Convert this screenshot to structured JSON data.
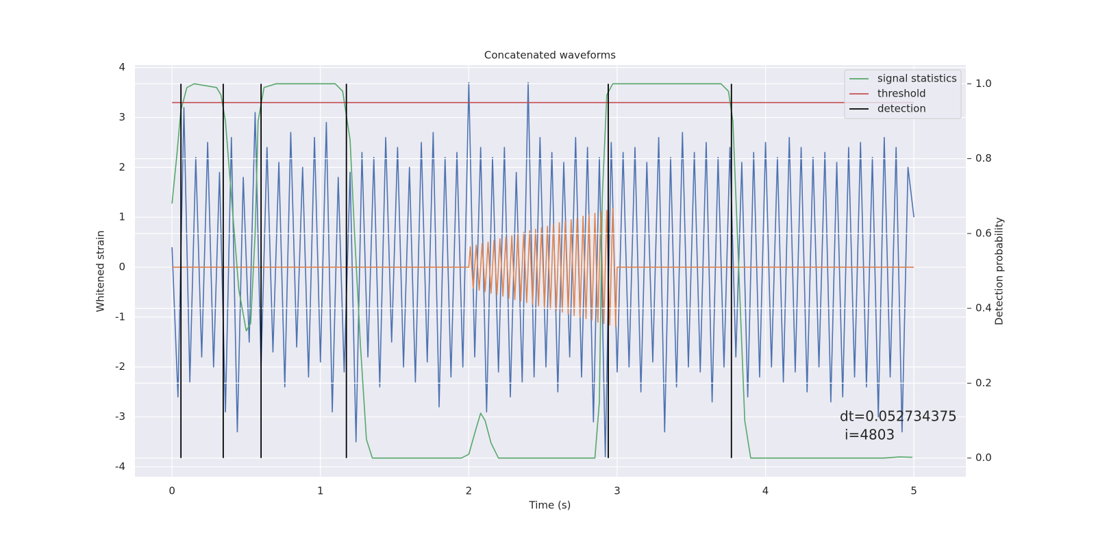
{
  "chart_data": {
    "type": "line",
    "title": "Concatenated waveforms",
    "xlabel": "Time (s)",
    "ylabel": "Whitened strain",
    "y2label": "Detection probability",
    "xlim": [
      -0.25,
      5.35
    ],
    "ylim": [
      -4.2,
      4.05
    ],
    "y2lim": [
      -0.05,
      1.05
    ],
    "xticks": [
      0,
      1,
      2,
      3,
      4,
      5
    ],
    "yticks": [
      -4,
      -3,
      -2,
      -1,
      0,
      1,
      2,
      3,
      4
    ],
    "y2ticks": [
      {
        "value": 0,
        "label": "0.0"
      },
      0.2,
      0.4,
      0.6,
      0.8,
      {
        "value": 1,
        "label": "1.0"
      }
    ],
    "grid": true,
    "legend": "upper right",
    "series": [
      {
        "color": "#4c72b0",
        "axis": "y",
        "x": [
          0,
          0.04,
          0.08,
          0.12,
          0.16,
          0.2,
          0.24,
          0.28,
          0.32,
          0.36,
          0.4,
          0.44,
          0.48,
          0.52,
          0.56,
          0.6,
          0.64,
          0.68,
          0.72,
          0.76,
          0.8,
          0.84,
          0.88,
          0.92,
          0.96,
          1,
          1.04,
          1.08,
          1.12,
          1.16,
          1.2,
          1.24,
          1.28,
          1.32,
          1.36,
          1.4,
          1.44,
          1.48,
          1.52,
          1.56,
          1.6,
          1.64,
          1.68,
          1.72,
          1.76,
          1.8,
          1.84,
          1.88,
          1.92,
          1.96,
          2,
          2.04,
          2.08,
          2.12,
          2.16,
          2.2,
          2.24,
          2.28,
          2.32,
          2.36,
          2.4,
          2.44,
          2.48,
          2.52,
          2.56,
          2.6,
          2.64,
          2.68,
          2.72,
          2.76,
          2.8,
          2.84,
          2.88,
          2.92,
          2.96,
          3,
          3.04,
          3.08,
          3.12,
          3.16,
          3.2,
          3.24,
          3.28,
          3.32,
          3.36,
          3.4,
          3.44,
          3.48,
          3.52,
          3.56,
          3.6,
          3.64,
          3.68,
          3.72,
          3.76,
          3.8,
          3.84,
          3.88,
          3.92,
          3.96,
          4,
          4.04,
          4.08,
          4.12,
          4.16,
          4.2,
          4.24,
          4.28,
          4.32,
          4.36,
          4.4,
          4.44,
          4.48,
          4.52,
          4.56,
          4.6,
          4.64,
          4.68,
          4.72,
          4.76,
          4.8,
          4.84,
          4.88,
          4.92,
          4.96,
          5
        ],
        "values": [
          0.4,
          -2.6,
          3.2,
          -2.3,
          2.2,
          -1.8,
          2.5,
          -2.0,
          1.9,
          -2.9,
          2.6,
          -3.3,
          1.8,
          -1.5,
          3.1,
          -2.0,
          2.4,
          -1.7,
          2.1,
          -2.4,
          2.7,
          -1.6,
          2.0,
          -2.2,
          2.6,
          -1.9,
          2.9,
          -2.9,
          1.8,
          -2.1,
          1.9,
          -3.5,
          2.3,
          -1.8,
          2.2,
          -2.4,
          2.6,
          -1.5,
          2.4,
          -2.0,
          2.0,
          -2.3,
          2.5,
          -1.9,
          2.7,
          -2.8,
          2.2,
          -2.2,
          2.3,
          -2.0,
          3.7,
          -1.8,
          2.4,
          -2.9,
          2.2,
          -2.1,
          2.4,
          -2.6,
          1.9,
          -2.3,
          3.7,
          -2.2,
          2.6,
          -2.0,
          2.3,
          -2.5,
          2.1,
          -1.8,
          2.6,
          -2.2,
          2.4,
          -3.1,
          2.2,
          -3.8,
          2.5,
          -2.1,
          2.3,
          -2.0,
          2.4,
          -2.5,
          2.1,
          -1.9,
          2.6,
          -3.3,
          2.2,
          -2.4,
          2.7,
          -2.0,
          2.3,
          -2.1,
          2.5,
          -2.7,
          2.2,
          -2.0,
          2.4,
          -1.8,
          2.1,
          -2.6,
          2.3,
          -2.2,
          2.5,
          -2.0,
          2.2,
          -2.3,
          2.6,
          -2.1,
          2.4,
          -2.5,
          2.2,
          -2.0,
          2.3,
          -2.7,
          2.1,
          -2.6,
          2.4,
          -2.2,
          2.5,
          -2.4,
          2.2,
          -3.0,
          2.6,
          -2.2,
          2.4,
          -3.3,
          2.0,
          1.0
        ]
      },
      {
        "color": "#dd8452",
        "axis": "y",
        "x": [
          0,
          2,
          2.01,
          2.03,
          2.05,
          2.07,
          2.09,
          2.11,
          2.13,
          2.15,
          2.17,
          2.19,
          2.21,
          2.23,
          2.25,
          2.27,
          2.29,
          2.31,
          2.33,
          2.35,
          2.37,
          2.39,
          2.41,
          2.43,
          2.45,
          2.47,
          2.49,
          2.51,
          2.53,
          2.55,
          2.57,
          2.59,
          2.61,
          2.63,
          2.65,
          2.67,
          2.69,
          2.71,
          2.73,
          2.75,
          2.77,
          2.79,
          2.81,
          2.83,
          2.85,
          2.87,
          2.89,
          2.91,
          2.93,
          2.95,
          2.97,
          2.99,
          3,
          5
        ],
        "values": [
          0,
          0,
          0.41,
          -0.42,
          0.44,
          -0.46,
          0.47,
          -0.49,
          0.5,
          -0.52,
          0.54,
          -0.55,
          0.57,
          -0.58,
          0.6,
          -0.62,
          0.63,
          -0.65,
          0.66,
          -0.68,
          0.7,
          -0.71,
          0.73,
          -0.74,
          0.76,
          -0.78,
          0.79,
          -0.81,
          0.82,
          -0.84,
          0.86,
          -0.87,
          0.89,
          -0.9,
          0.92,
          -0.94,
          0.95,
          -0.97,
          0.98,
          -1,
          1.02,
          -1.03,
          1.05,
          -1.06,
          1.08,
          -1.1,
          1.11,
          -1.13,
          1.14,
          -1.16,
          1.18,
          -1.19,
          0,
          0
        ]
      },
      {
        "name": "signal statistics",
        "color": "#55a868",
        "axis": "y2",
        "x": [
          0,
          0.03,
          0.06,
          0.1,
          0.15,
          0.3,
          0.33,
          0.36,
          0.4,
          0.45,
          0.5,
          0.53,
          0.56,
          0.58,
          0.62,
          0.7,
          1.1,
          1.15,
          1.2,
          1.23,
          1.27,
          1.31,
          1.35,
          1.95,
          2,
          2.05,
          2.08,
          2.11,
          2.15,
          2.2,
          2.85,
          2.88,
          2.9,
          2.93,
          2.97,
          3.7,
          3.75,
          3.78,
          3.82,
          3.86,
          3.9,
          4.8,
          4.9,
          4.99
        ],
        "values": [
          0.68,
          0.8,
          0.93,
          0.99,
          1,
          0.99,
          0.97,
          0.9,
          0.7,
          0.45,
          0.34,
          0.36,
          0.6,
          0.9,
          0.99,
          1,
          1,
          0.98,
          0.85,
          0.6,
          0.3,
          0.05,
          0,
          0,
          0.01,
          0.08,
          0.12,
          0.1,
          0.04,
          0,
          0,
          0.15,
          0.7,
          0.97,
          1,
          1,
          0.98,
          0.9,
          0.5,
          0.1,
          0,
          0,
          0.003,
          0.002
        ]
      },
      {
        "name": "threshold",
        "color": "#c44e52",
        "axis": "y2",
        "x": [
          0,
          5
        ],
        "values": [
          0.95,
          0.95
        ]
      }
    ],
    "detections": {
      "name": "detection",
      "color": "#000000",
      "axis": "y2",
      "x": [
        0.06,
        0.345,
        0.6,
        1.175,
        2.94,
        3.77
      ],
      "ymin": 0,
      "ymax": 1
    },
    "annotations": [
      "dt=0.052734375",
      "i=4803"
    ]
  }
}
